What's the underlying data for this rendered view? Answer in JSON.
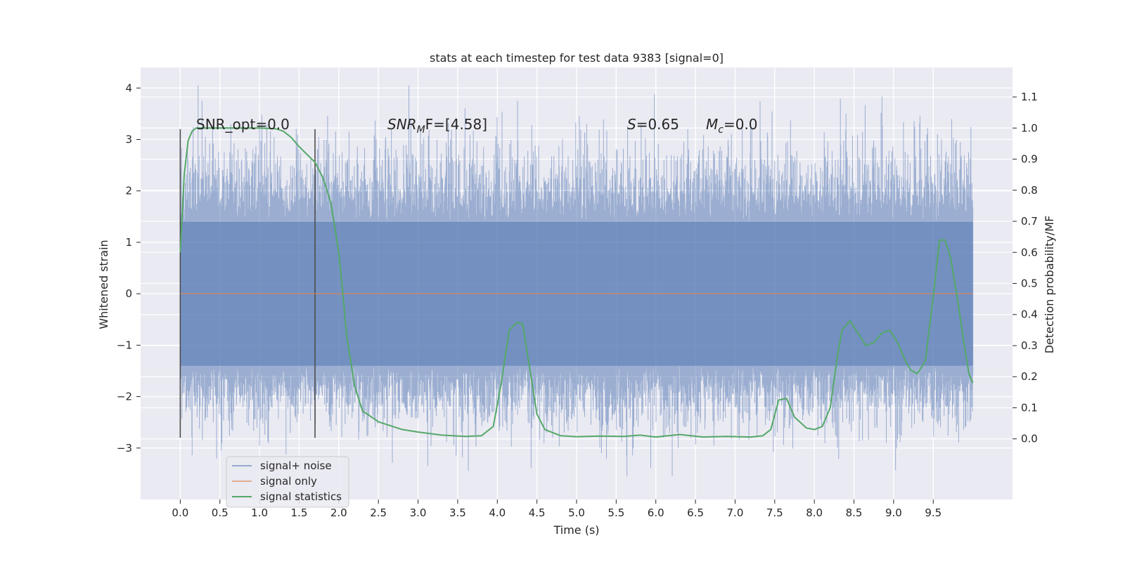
{
  "chart_data": {
    "type": "line",
    "title": "stats at each timestep for test data 9383 [signal=0]",
    "xlabel": "Time (s)",
    "ylabel": "Whitened strain",
    "y2label": "Detection probability/MF",
    "xlim": [
      -0.5,
      10.5
    ],
    "ylim": [
      -4.0,
      4.4
    ],
    "y2lim": [
      -0.195,
      1.195
    ],
    "x_ticks": [
      0.0,
      0.5,
      1.0,
      1.5,
      2.0,
      2.5,
      3.0,
      3.5,
      4.0,
      4.5,
      5.0,
      5.5,
      6.0,
      6.5,
      7.0,
      7.5,
      8.0,
      8.5,
      9.0,
      9.5
    ],
    "x_tick_labels": [
      "0.0",
      "0.5",
      "1.0",
      "1.5",
      "2.0",
      "2.5",
      "3.0",
      "3.5",
      "4.0",
      "4.5",
      "5.0",
      "5.5",
      "6.0",
      "6.5",
      "7.0",
      "7.5",
      "8.0",
      "8.5",
      "9.0",
      "9.5"
    ],
    "y_ticks": [
      4,
      3,
      2,
      1,
      0,
      -1,
      -2,
      -3
    ],
    "y_tick_labels": [
      "4",
      "3",
      "2",
      "1",
      "0",
      "−1",
      "−2",
      "−3"
    ],
    "y2_ticks": [
      1.1,
      1.0,
      0.9,
      0.8,
      0.7,
      0.6,
      0.5,
      0.4,
      0.3,
      0.2,
      0.1,
      0.0
    ],
    "y2_tick_labels": [
      "1.1",
      "1.0",
      "0.9",
      "0.8",
      "0.7",
      "0.6",
      "0.5",
      "0.4",
      "0.3",
      "0.2",
      "0.1",
      "0.0"
    ],
    "grid": true,
    "legend_position": "bottom-left",
    "legend": [
      {
        "name": "signal+ noise",
        "color": "#4c72b0"
      },
      {
        "name": "signal only",
        "color": "#dd8452"
      },
      {
        "name": "signal statistics",
        "color": "#55a868"
      }
    ],
    "annotations": {
      "snr_opt": "SNR_opt=0.0",
      "snr_mf_main": "SNR",
      "snr_mf_sub": "M",
      "snr_mf_rest": "F=[4.58]",
      "s_var": "S",
      "s_rest": "=0.65",
      "mc_var": "M",
      "mc_sub": "c",
      "mc_rest": "=0.0"
    },
    "vertical_lines": [
      {
        "x": 0.0,
        "y_from": -2.8,
        "y_to": 3.2
      },
      {
        "x": 1.7,
        "y_from": -2.8,
        "y_to": 3.2
      }
    ],
    "series": [
      {
        "name": "signal+ noise",
        "axis": "left",
        "color": "#4c72b0",
        "x_range": [
          0.0,
          10.0
        ],
        "envelope_typical": 1.4,
        "envelope_max": 4.05,
        "envelope_min": -3.55
      },
      {
        "name": "signal only",
        "axis": "left",
        "color": "#dd8452",
        "x": [
          0.0,
          10.0
        ],
        "y": [
          0.0,
          0.0
        ]
      },
      {
        "name": "signal statistics",
        "axis": "right",
        "color": "#55a868",
        "x": [
          0.0,
          0.05,
          0.1,
          0.15,
          0.2,
          0.3,
          0.5,
          0.8,
          1.0,
          1.2,
          1.3,
          1.4,
          1.5,
          1.6,
          1.7,
          1.8,
          1.9,
          2.0,
          2.05,
          2.1,
          2.2,
          2.3,
          2.5,
          2.8,
          3.0,
          3.3,
          3.6,
          3.8,
          3.95,
          4.05,
          4.15,
          4.25,
          4.32,
          4.4,
          4.5,
          4.6,
          4.8,
          5.0,
          5.3,
          5.6,
          5.8,
          6.0,
          6.3,
          6.6,
          6.9,
          7.2,
          7.35,
          7.45,
          7.55,
          7.65,
          7.75,
          7.9,
          8.0,
          8.1,
          8.2,
          8.3,
          8.35,
          8.45,
          8.55,
          8.65,
          8.75,
          8.85,
          8.95,
          9.05,
          9.15,
          9.22,
          9.3,
          9.4,
          9.5,
          9.58,
          9.65,
          9.72,
          9.8,
          9.88,
          9.95,
          10.0
        ],
        "y": [
          0.6,
          0.85,
          0.96,
          0.99,
          1.0,
          1.0,
          1.0,
          1.0,
          1.0,
          0.998,
          0.99,
          0.97,
          0.94,
          0.915,
          0.89,
          0.84,
          0.76,
          0.6,
          0.47,
          0.33,
          0.17,
          0.09,
          0.055,
          0.03,
          0.022,
          0.012,
          0.008,
          0.01,
          0.04,
          0.18,
          0.35,
          0.375,
          0.37,
          0.24,
          0.08,
          0.03,
          0.01,
          0.007,
          0.009,
          0.008,
          0.012,
          0.006,
          0.014,
          0.006,
          0.008,
          0.006,
          0.01,
          0.03,
          0.125,
          0.13,
          0.07,
          0.035,
          0.03,
          0.04,
          0.1,
          0.28,
          0.35,
          0.38,
          0.34,
          0.3,
          0.31,
          0.34,
          0.35,
          0.31,
          0.25,
          0.22,
          0.21,
          0.25,
          0.46,
          0.64,
          0.64,
          0.58,
          0.46,
          0.32,
          0.21,
          0.18
        ]
      }
    ]
  }
}
